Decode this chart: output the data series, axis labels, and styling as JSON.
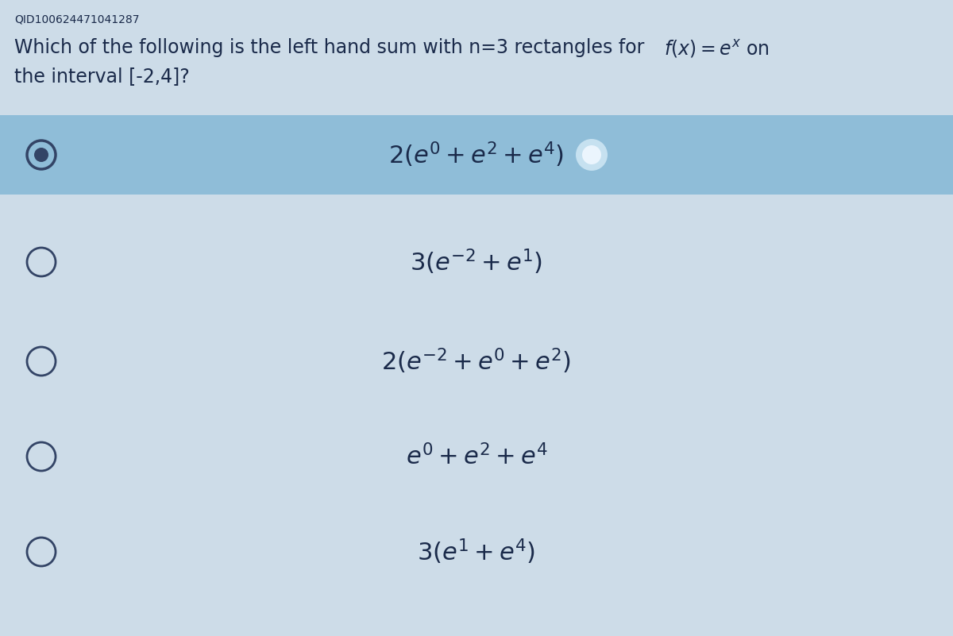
{
  "qid": "QID100624471041287",
  "background_color": "#cddce8",
  "answer_bg_color": "#8fbdd8",
  "text_color": "#1a2a4a",
  "options": [
    {
      "latex": "$2(e^0 + e^2 + e^4)$",
      "selected": true
    },
    {
      "latex": "$3(e^{-2} + e^1)$",
      "selected": false
    },
    {
      "latex": "$2(e^{-2} + e^0 + e^2)$",
      "selected": false
    },
    {
      "latex": "$e^0 + e^2 + e^4$",
      "selected": false
    },
    {
      "latex": "$3(e^1 + e^4)$",
      "selected": false
    }
  ],
  "radio_color": "#334466",
  "font_size_qid": 10,
  "font_size_question": 17,
  "font_size_options": 22,
  "fig_width": 12.0,
  "fig_height": 8.01,
  "dpi": 100
}
